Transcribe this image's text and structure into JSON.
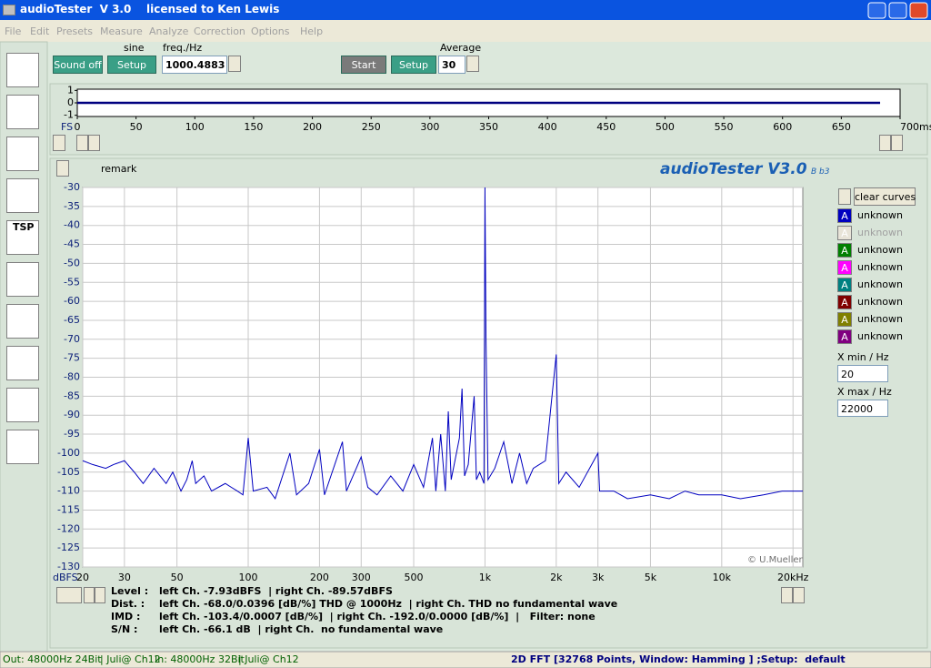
{
  "window": {
    "title": "audioTester  V 3.0    licensed to Ken Lewis"
  },
  "menu": [
    "File",
    "Edit",
    "Presets",
    "Measure",
    "Analyze",
    "Correction",
    "Options",
    "Help"
  ],
  "toolbar": {
    "sound_button": "Sound off",
    "signal_label": "sine",
    "signal_setup": "Setup",
    "freq_label": "freq./Hz",
    "freq_value": "1000.4883",
    "start_button": "Start",
    "setup_button": "Setup",
    "average_label": "Average",
    "average_value": "30"
  },
  "sidebar": {
    "tsp_icon": "TSP"
  },
  "chart_data": [
    {
      "type": "line",
      "y_axis_label": "FS",
      "x": [
        0,
        683
      ],
      "series": [
        {
          "color": "#000080",
          "values": [
            0,
            0
          ]
        }
      ],
      "xlim": [
        0,
        700
      ],
      "xticks": [
        0,
        50,
        100,
        150,
        200,
        250,
        300,
        350,
        400,
        450,
        500,
        550,
        600,
        650,
        {
          "value": 700,
          "label": "700ms"
        }
      ],
      "ylim": [
        -1.1,
        1.1
      ],
      "yticks": [
        1,
        0,
        -1
      ],
      "grid": false,
      "log_x": false
    },
    {
      "type": "line",
      "y_axis_label": "dBFS",
      "x": [
        20,
        22,
        25,
        27,
        30,
        33,
        36,
        40,
        45,
        48,
        52,
        55,
        58,
        60,
        65,
        70,
        80,
        90,
        95,
        100,
        105,
        120,
        130,
        150,
        160,
        180,
        200,
        210,
        250,
        260,
        300,
        320,
        350,
        400,
        450,
        500,
        550,
        600,
        620,
        650,
        680,
        700,
        720,
        780,
        800,
        820,
        850,
        900,
        920,
        950,
        990,
        1000,
        1010,
        1030,
        1100,
        1200,
        1300,
        1400,
        1500,
        1600,
        1800,
        2000,
        2050,
        2200,
        2500,
        3000,
        3050,
        3500,
        4000,
        5000,
        6000,
        7000,
        8000,
        10000,
        12000,
        15000,
        18000,
        22000
      ],
      "series": [
        {
          "name": "unknown",
          "color": "#0000c0",
          "values": [
            -102,
            -103,
            -104,
            -103,
            -102,
            -105,
            -108,
            -104,
            -108,
            -105,
            -110,
            -107,
            -102,
            -108,
            -106,
            -110,
            -108,
            -110,
            -111,
            -96,
            -110,
            -109,
            -112,
            -100,
            -111,
            -108,
            -99,
            -111,
            -97,
            -110,
            -101,
            -109,
            -111,
            -106,
            -110,
            -103,
            -109,
            -96,
            -110,
            -95,
            -110,
            -89,
            -107,
            -96,
            -83,
            -106,
            -103,
            -85,
            -107,
            -105,
            -108,
            -30,
            -70,
            -107,
            -104,
            -97,
            -108,
            -100,
            -108,
            -104,
            -102,
            -74,
            -108,
            -105,
            -109,
            -100,
            -110,
            -110,
            -112,
            -111,
            -112,
            -110,
            -111,
            -111,
            -112,
            -111,
            -110,
            -110
          ]
        }
      ],
      "xlim": [
        20,
        22000
      ],
      "xticks": [
        20,
        30,
        50,
        100,
        200,
        300,
        500,
        {
          "value": 1000,
          "label": "1k"
        },
        {
          "value": 2000,
          "label": "2k"
        },
        {
          "value": 3000,
          "label": "3k"
        },
        {
          "value": 5000,
          "label": "5k"
        },
        {
          "value": 10000,
          "label": "10k"
        },
        {
          "value": 20000,
          "label": "20kHz"
        }
      ],
      "ylim": [
        -130,
        -30
      ],
      "yticks": [
        -30,
        -35,
        -40,
        -45,
        -50,
        -55,
        -60,
        -65,
        -70,
        -75,
        -80,
        -85,
        -90,
        -95,
        -100,
        -105,
        -110,
        -115,
        -120,
        -125,
        -130
      ],
      "grid": true,
      "log_x": true
    }
  ],
  "plot_panel": {
    "remark": "remark",
    "logo": "audioTester V3.0",
    "build": "B b3",
    "copyright": "© U.Mueller",
    "clear_button": "clear curves",
    "xmin_label": "X min / Hz",
    "xmax_label": "X max / Hz",
    "first_letter": "A",
    "curves": [
      {
        "letter": "A",
        "name": "unknown",
        "color": "#e8e4d8"
      },
      {
        "letter": "A",
        "name": "unknown",
        "color": "#008000"
      },
      {
        "letter": "A",
        "name": "unknown",
        "color": "#ff00ff"
      },
      {
        "letter": "A",
        "name": "unknown",
        "color": "#008080"
      },
      {
        "letter": "A",
        "name": "unknown",
        "color": "#800000"
      },
      {
        "letter": "A",
        "name": "unknown",
        "color": "#808000"
      },
      {
        "letter": "A",
        "name": "unknown",
        "color": "#800080"
      }
    ]
  },
  "readout": [
    {
      "label": "Level :",
      "text": "left Ch. -7.93dBFS  | right Ch. -89.57dBFS"
    },
    {
      "label": "Dist. :",
      "text": "left Ch. -68.0/0.0396 [dB/%] THD @ 1000Hz  | right Ch. THD no fundamental wave"
    },
    {
      "label": "IMD :",
      "text": "left Ch. -103.4/0.0007 [dB/%]  | right Ch. -192.0/0.0000 [dB/%]  |   Filter: none"
    },
    {
      "label": "S/N :",
      "text": "left Ch. -66.1 dB  | right Ch.  no fundamental wave"
    }
  ],
  "status_bar": [
    "Out: 48000Hz 24Bit",
    "| Juli@ Ch12",
    "In: 48000Hz 32Bit",
    "| Juli@ Ch12",
    "2D FFT [32768 Points, Window: Hamming ] ;Setup:  default"
  ]
}
